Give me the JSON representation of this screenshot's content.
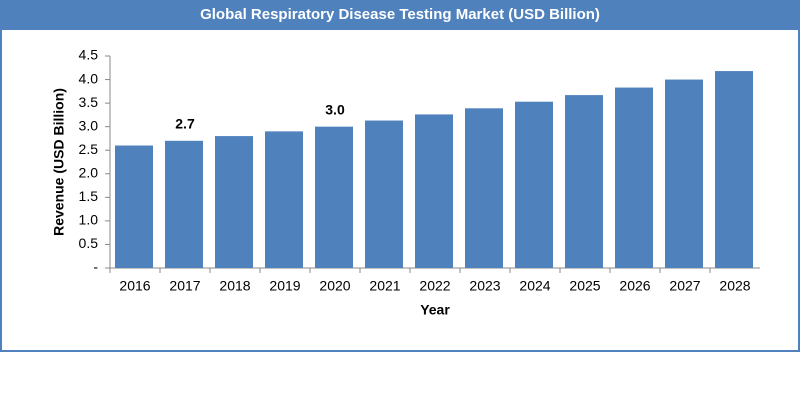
{
  "chart_data": {
    "type": "bar",
    "title": "Global Respiratory Disease Testing Market (USD Billion)",
    "x_label": "Year",
    "y_label": "Revenue (USD Billion)",
    "categories": [
      "2016",
      "2017",
      "2018",
      "2019",
      "2020",
      "2021",
      "2022",
      "2023",
      "2024",
      "2025",
      "2026",
      "2027",
      "2028"
    ],
    "values": [
      2.6,
      2.7,
      2.8,
      2.9,
      3.0,
      3.13,
      3.26,
      3.39,
      3.53,
      3.67,
      3.83,
      4.0,
      4.18
    ],
    "value_labels": [
      null,
      "2.7",
      null,
      null,
      "3.0",
      null,
      null,
      null,
      null,
      null,
      null,
      null,
      null
    ],
    "color": "#4f81bd",
    "ylim": [
      0,
      4.5
    ],
    "yticks": [
      {
        "value": 0,
        "label": "-"
      },
      0.5,
      {
        "value": 1,
        "label": "1.0"
      },
      1.5,
      {
        "value": 2,
        "label": "2.0"
      },
      2.5,
      {
        "value": 3,
        "label": "3.0"
      },
      3.5,
      {
        "value": 4,
        "label": "4.0"
      },
      4.5
    ],
    "grid": false
  }
}
